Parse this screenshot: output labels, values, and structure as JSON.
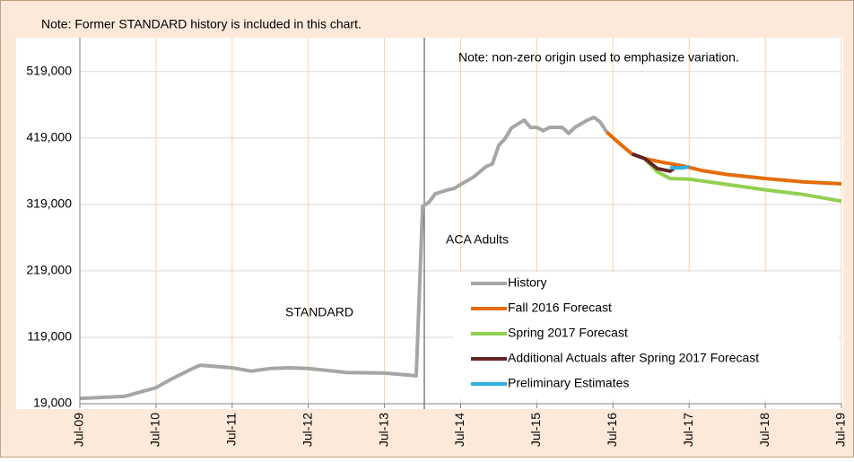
{
  "chart_data": {
    "type": "line",
    "title": "Note: Former STANDARD history is included in this chart.",
    "annotations": [
      "Note: non-zero origin used to emphasize variation.",
      "ACA Adults",
      "STANDARD"
    ],
    "xlim": [
      "2009-07",
      "2019-07"
    ],
    "xticks": [
      {
        "value": "2009-07",
        "label": "Jul-09"
      },
      {
        "value": "2010-07",
        "label": "Jul-10"
      },
      {
        "value": "2011-07",
        "label": "Jul-11"
      },
      {
        "value": "2012-07",
        "label": "Jul-12"
      },
      {
        "value": "2013-07",
        "label": "Jul-13"
      },
      {
        "value": "2014-07",
        "label": "Jul-14"
      },
      {
        "value": "2015-07",
        "label": "Jul-15"
      },
      {
        "value": "2016-07",
        "label": "Jul-16"
      },
      {
        "value": "2017-07",
        "label": "Jul-17"
      },
      {
        "value": "2018-07",
        "label": "Jul-18"
      },
      {
        "value": "2019-07",
        "label": "Jul-19"
      }
    ],
    "ylim": [
      19000,
      570000
    ],
    "yticks": [
      {
        "value": 19000,
        "label": "19,000"
      },
      {
        "value": 119000,
        "label": "119,000"
      },
      {
        "value": 219000,
        "label": "219,000"
      },
      {
        "value": 319000,
        "label": "319,000"
      },
      {
        "value": 419000,
        "label": "419,000"
      },
      {
        "value": 519000,
        "label": "519,000"
      }
    ],
    "grid": true,
    "legend": "bottom-right",
    "series": [
      {
        "name": "History",
        "color": "#a6a6a6",
        "x": [
          "2009-07",
          "2010-02",
          "2010-07",
          "2010-09",
          "2011-01",
          "2011-02",
          "2011-07",
          "2011-10",
          "2012-01",
          "2012-04",
          "2012-07",
          "2013-01",
          "2013-07",
          "2013-11",
          "2013-12",
          "2014-01",
          "2014-02",
          "2014-03",
          "2014-05",
          "2014-06",
          "2014-07",
          "2014-09",
          "2014-11",
          "2014-12",
          "2015-01",
          "2015-02",
          "2015-03",
          "2015-05",
          "2015-06",
          "2015-07",
          "2015-08",
          "2015-09",
          "2015-11",
          "2015-12",
          "2016-01",
          "2016-03",
          "2016-04",
          "2016-05",
          "2016-06"
        ],
        "values": [
          27000,
          30000,
          43000,
          54000,
          73000,
          77000,
          73000,
          68000,
          72000,
          73000,
          72000,
          66000,
          65000,
          62000,
          61000,
          316000,
          322000,
          335000,
          341000,
          343000,
          349000,
          360000,
          376000,
          380000,
          408000,
          418000,
          434000,
          446000,
          435000,
          435000,
          430000,
          435000,
          435000,
          426000,
          435000,
          446000,
          450000,
          443000,
          428000
        ]
      },
      {
        "name": "Fall 2016 Forecast",
        "color": "#e46c0a",
        "x": [
          "2016-06",
          "2016-08",
          "2016-10",
          "2016-12",
          "2017-03",
          "2017-06",
          "2017-09",
          "2018-01",
          "2018-07",
          "2019-01",
          "2019-07"
        ],
        "values": [
          428000,
          411000,
          395000,
          388000,
          382000,
          377000,
          370000,
          364000,
          358000,
          353000,
          350000
        ]
      },
      {
        "name": "Spring 2017 Forecast",
        "color": "#92d050",
        "x": [
          "2016-10",
          "2016-12",
          "2017-02",
          "2017-04",
          "2017-07",
          "2018-01",
          "2018-07",
          "2019-01",
          "2019-07"
        ],
        "values": [
          395000,
          388000,
          368000,
          358000,
          357000,
          349000,
          341000,
          334000,
          324000
        ]
      },
      {
        "name": "Additional Actuals after Spring 2017 Forecast",
        "color": "#632523",
        "x": [
          "2016-10",
          "2016-12",
          "2017-02",
          "2017-04",
          "2017-05"
        ],
        "values": [
          395000,
          388000,
          373000,
          369000,
          376000
        ]
      },
      {
        "name": "Preliminary Estimates",
        "color": "#31b0e0",
        "x": [
          "2017-04",
          "2017-06",
          "2017-07"
        ],
        "values": [
          374000,
          374000,
          376000
        ]
      }
    ]
  }
}
